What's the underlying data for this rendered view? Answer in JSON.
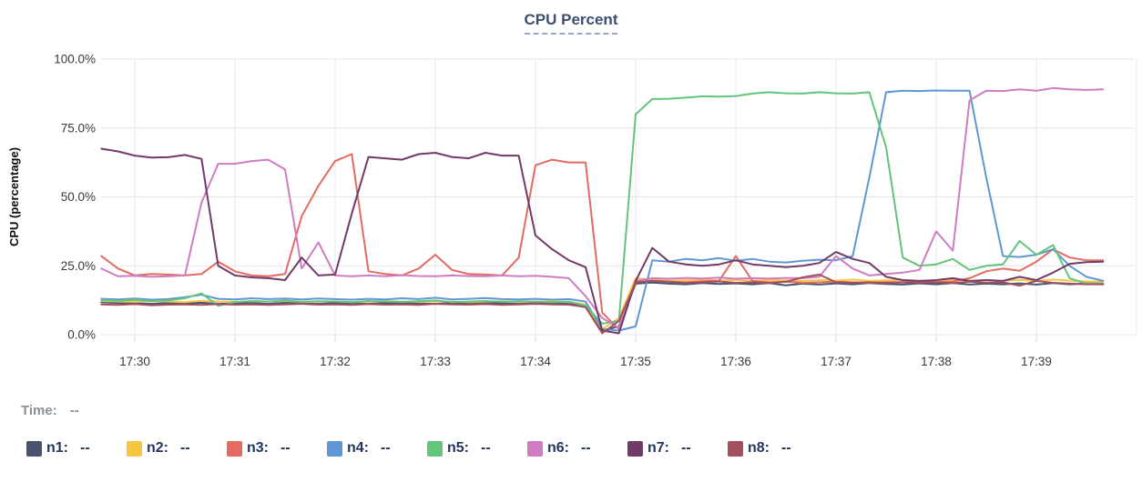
{
  "title": "CPU Percent",
  "time_readout": {
    "label": "Time:",
    "value": "--"
  },
  "legend": {
    "items": [
      {
        "label": "n1:",
        "value": "--"
      },
      {
        "label": "n2:",
        "value": "--"
      },
      {
        "label": "n3:",
        "value": "--"
      },
      {
        "label": "n4:",
        "value": "--"
      },
      {
        "label": "n5:",
        "value": "--"
      },
      {
        "label": "n6:",
        "value": "--"
      },
      {
        "label": "n7:",
        "value": "--"
      },
      {
        "label": "n8:",
        "value": "--"
      }
    ]
  },
  "chart_data": {
    "type": "line",
    "title": "CPU Percent",
    "xlabel": "",
    "ylabel": "CPU (percentage)",
    "ylim": [
      0,
      100
    ],
    "grid": true,
    "legend_position": "bottom",
    "x_start": "17:29:40",
    "x_step_seconds": 10,
    "x_tick_labels": [
      "17:30",
      "17:31",
      "17:32",
      "17:33",
      "17:34",
      "17:35",
      "17:36",
      "17:37",
      "17:38",
      "17:39"
    ],
    "y_ticks": [
      {
        "label": "100.0%",
        "value": 100
      },
      {
        "label": "75.0%",
        "value": 75
      },
      {
        "label": "50.0%",
        "value": 50
      },
      {
        "label": "25.0%",
        "value": 25
      },
      {
        "label": "0.0%",
        "value": 0
      }
    ],
    "series": [
      {
        "name": "n1",
        "color": "#47536f",
        "values": [
          11.8,
          11.5,
          11.4,
          11.2,
          11.5,
          11.3,
          11.6,
          11.2,
          11.4,
          11.5,
          11.2,
          11.6,
          11.3,
          11.2,
          11.5,
          11.3,
          11.2,
          11.5,
          11.6,
          11.3,
          11.2,
          11.5,
          11.3,
          11.6,
          11.4,
          11.2,
          11.5,
          11.3,
          11.2,
          10.6,
          1.5,
          3,
          18.5,
          18.9,
          18.5,
          18.3,
          18.7,
          18.4,
          18.6,
          18.3,
          18.7,
          17.9,
          18.5,
          18.2,
          18.6,
          18.3,
          18.7,
          18.4,
          18.2,
          18.6,
          18.3,
          18.7,
          18.2,
          18.5,
          18.3,
          18.6,
          18.2,
          18.7,
          18.3,
          18.6,
          18.5
        ]
      },
      {
        "name": "n2",
        "color": "#f5c642",
        "values": [
          12.2,
          12,
          11.9,
          12.1,
          12,
          11.8,
          12.3,
          12,
          11.9,
          12.1,
          12,
          12.2,
          11.9,
          12,
          12.1,
          11.8,
          12,
          12.2,
          12,
          11.9,
          12.1,
          12,
          11.8,
          12,
          12.1,
          11.9,
          12,
          12.1,
          11.9,
          11,
          2,
          6,
          20.5,
          19.9,
          19.6,
          19.8,
          20.1,
          19.6,
          19.9,
          19.5,
          19.9,
          19.7,
          19.5,
          19.8,
          19.6,
          20,
          19.5,
          19.7,
          19.9,
          19.5,
          19.6,
          20,
          19.5,
          19.7,
          19.6,
          19.9,
          19.5,
          20,
          19.6,
          19.3,
          19.2
        ]
      },
      {
        "name": "n3",
        "color": "#e36b61",
        "values": [
          28.5,
          24,
          21.5,
          22,
          21.8,
          21.5,
          22,
          26.5,
          23,
          21.5,
          21.2,
          22,
          43,
          54,
          63,
          65.5,
          23,
          22,
          21.5,
          24,
          29,
          23.5,
          22,
          21.8,
          21.5,
          28,
          61.5,
          63.5,
          62.5,
          62.5,
          8,
          2,
          19,
          19.6,
          19.2,
          19,
          19.4,
          19.6,
          28.5,
          19.5,
          19,
          19.2,
          18.8,
          19,
          19.2,
          19,
          18.8,
          19.1,
          19,
          19.2,
          19,
          19.3,
          20.5,
          23,
          24,
          23.2,
          26.5,
          31,
          28,
          27,
          27
        ]
      },
      {
        "name": "n4",
        "color": "#5f97d4",
        "values": [
          13,
          12.8,
          13.1,
          12.7,
          12.9,
          13.6,
          14.5,
          13,
          12.8,
          13.2,
          12.9,
          13.1,
          12.8,
          13.1,
          12.9,
          12.7,
          13,
          12.8,
          13.2,
          12.9,
          13.4,
          12.8,
          13,
          13.3,
          12.9,
          12.8,
          13,
          12.7,
          12.9,
          12,
          2,
          1.5,
          3,
          27,
          26.5,
          27.5,
          27,
          27.8,
          26.8,
          27.5,
          26.5,
          26.2,
          26.8,
          27.2,
          27,
          28.5,
          57,
          88,
          88.5,
          88.4,
          88.6,
          88.5,
          88.5,
          57,
          28.5,
          28.2,
          29,
          31,
          25,
          21,
          19.5
        ]
      },
      {
        "name": "n5",
        "color": "#63c57c",
        "values": [
          12.5,
          12.3,
          12.6,
          12.2,
          12.4,
          13.2,
          15,
          10.5,
          11.8,
          12.2,
          12,
          12.4,
          11.9,
          12.1,
          12,
          11.8,
          12.2,
          12,
          11.9,
          12.1,
          12.4,
          11.8,
          12,
          12.2,
          11.9,
          12.1,
          12,
          11.8,
          12,
          10.5,
          4,
          5,
          80,
          85.5,
          85.6,
          86,
          86.5,
          86.4,
          86.6,
          87.5,
          88,
          87.6,
          87.5,
          88,
          87.6,
          87.5,
          88,
          68,
          28,
          25,
          25.5,
          27.5,
          23.5,
          25,
          25.5,
          34,
          29,
          32.5,
          20.5,
          18.5,
          18.5
        ]
      },
      {
        "name": "n6",
        "color": "#cf7cc3",
        "values": [
          24,
          21.2,
          21.4,
          21,
          21.2,
          21.5,
          48,
          62,
          62,
          63,
          63.5,
          60,
          24,
          33.5,
          21.5,
          21.2,
          21.5,
          21.2,
          21.6,
          21.3,
          21.2,
          21.5,
          21.3,
          21.2,
          21.5,
          21.2,
          21.4,
          21,
          20.5,
          14,
          6,
          2.5,
          19.5,
          20.5,
          20.3,
          20.6,
          20.4,
          20.7,
          20.3,
          20.5,
          20.4,
          20.6,
          20.5,
          21,
          28.5,
          24,
          21.5,
          22,
          22.5,
          23.5,
          37.5,
          30.5,
          85,
          88.5,
          88.4,
          89,
          88.5,
          89.5,
          89,
          88.8,
          89
        ]
      },
      {
        "name": "n7",
        "color": "#713a68",
        "values": [
          67.5,
          66.5,
          65,
          64.3,
          64.4,
          65.2,
          63.8,
          25,
          21.5,
          20.8,
          20.5,
          19.8,
          28,
          21.5,
          21.8,
          44,
          64.5,
          64,
          63.5,
          65.5,
          66,
          64.5,
          64,
          66,
          65,
          65,
          36,
          31,
          27,
          24.5,
          1.5,
          0.5,
          19.5,
          31.5,
          26.5,
          25.5,
          25,
          25.5,
          27,
          25.5,
          25,
          24.5,
          25,
          26,
          30,
          27.5,
          26,
          21,
          19.8,
          19.5,
          19.8,
          20.5,
          19.5,
          19.8,
          19.5,
          21,
          19.8,
          22.5,
          25.7,
          26.3,
          26.5
        ]
      },
      {
        "name": "n8",
        "color": "#a24f60",
        "values": [
          11,
          10.8,
          11.1,
          10.7,
          10.9,
          11,
          10.8,
          11.1,
          10.9,
          11,
          10.8,
          11,
          11.2,
          10.9,
          11,
          10.8,
          11.1,
          10.9,
          11,
          10.8,
          11.2,
          11,
          10.9,
          11.1,
          10.8,
          11,
          11.2,
          11,
          10.9,
          10,
          0.5,
          5,
          19,
          19.5,
          19.2,
          18.8,
          19,
          19.3,
          18.8,
          19,
          18.7,
          19.2,
          20.8,
          21.8,
          19,
          18.8,
          19,
          18.7,
          19,
          18.8,
          19,
          18.7,
          19.2,
          18.8,
          19,
          17.8,
          19.5,
          18.8,
          18.5,
          18.3,
          18.3
        ]
      }
    ]
  }
}
